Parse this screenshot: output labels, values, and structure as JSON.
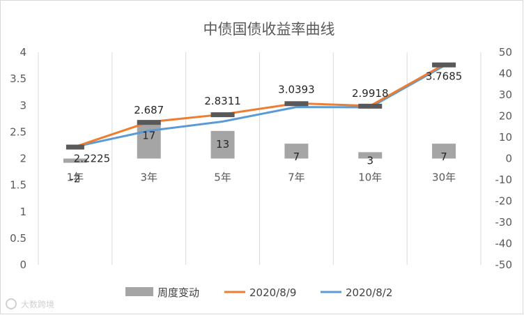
{
  "chart_data": {
    "type": "bar",
    "title": "中债国债收益率曲线",
    "categories": [
      "1年",
      "3年",
      "5年",
      "7年",
      "10年",
      "30年"
    ],
    "series": [
      {
        "name": "周度变动",
        "type": "bar",
        "axis": "right",
        "values": [
          -2,
          17,
          13,
          7,
          3,
          7
        ],
        "color": "#a5a5a5"
      },
      {
        "name": "2020/8/9",
        "type": "line",
        "axis": "left",
        "values": [
          2.2225,
          2.687,
          2.8311,
          3.0393,
          2.9918,
          3.7685
        ],
        "color": "#ed7d31"
      },
      {
        "name": "2020/8/2",
        "type": "line",
        "axis": "left",
        "values": [
          2.2225,
          2.5236,
          2.6961,
          2.9695,
          2.9655,
          3.7443
        ],
        "color": "#5b9bd5"
      }
    ],
    "y_left": {
      "range": [
        0,
        4
      ],
      "ticks": [
        "0",
        "0.5",
        "1",
        "1.5",
        "2",
        "2.5",
        "3",
        "3.5",
        "4"
      ]
    },
    "y_right": {
      "range": [
        -50,
        50
      ],
      "ticks": [
        "-50",
        "-40",
        "-30",
        "-20",
        "-10",
        "0",
        "10",
        "20",
        "30",
        "40",
        "50"
      ]
    },
    "bar_labels": [
      "-2",
      "17",
      "13",
      "7",
      "3",
      "7"
    ],
    "line_labels": [
      "2.2225",
      "2.687",
      "2.8311",
      "3.0393",
      "2.9918",
      "3.7685"
    ],
    "legend": {
      "position": "bottom",
      "items": [
        "周度变动",
        "2020/8/9",
        "2020/8/2"
      ]
    },
    "grid": "vertical-category"
  },
  "watermark": "大数跨境"
}
